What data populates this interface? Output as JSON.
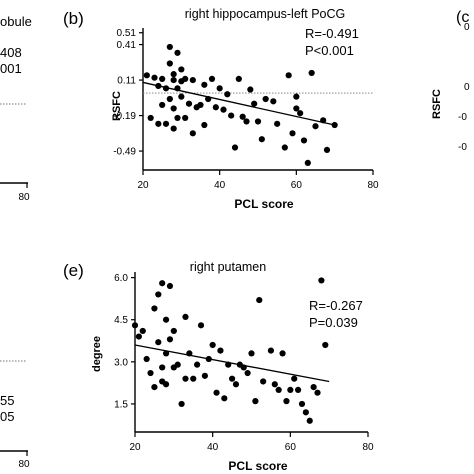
{
  "left_fragments": {
    "panel_a_title_fragment": "obule",
    "panel_a_stat1_fragment": "408",
    "panel_a_stat2_fragment": "001",
    "panel_a_x_tick_fragment": "80",
    "panel_d_stat1_fragment": "55",
    "panel_d_stat2_fragment": "05",
    "panel_d_x_tick_fragment": "80"
  },
  "right_fragments": {
    "panel_c_label_fragment": "(c",
    "panel_c_ylabel": "RSFC",
    "panel_c_tick_fragments": [
      "0",
      "0",
      "-0",
      "-0"
    ]
  },
  "chart_data": [
    {
      "type": "scatter",
      "panel_label": "(b)",
      "title": "right hippocampus-left PoCG",
      "xlabel": "PCL score",
      "ylabel": "RSFC",
      "xlim": [
        20,
        80
      ],
      "ylim": [
        -0.65,
        0.55
      ],
      "x_ticks": [
        "20",
        "40",
        "60",
        "80"
      ],
      "y_ticks": [
        "0.51",
        "0.41",
        "0.11",
        "-0.19",
        "-0.49"
      ],
      "y_tick_values": [
        0.51,
        0.41,
        0.11,
        -0.19,
        -0.49
      ],
      "reference_line": 0.0,
      "stats": [
        "R=-0.491",
        "P<0.001"
      ],
      "fit": {
        "x": [
          20,
          70
        ],
        "y": [
          0.09,
          -0.27
        ]
      },
      "x": [
        21,
        22,
        23,
        24,
        24,
        25,
        25,
        26,
        26,
        27,
        27,
        27,
        28,
        28,
        28,
        28,
        29,
        29,
        29,
        30,
        30,
        30,
        31,
        31,
        32,
        33,
        33,
        34,
        35,
        36,
        36,
        37,
        38,
        39,
        40,
        41,
        42,
        43,
        44,
        45,
        46,
        47,
        48,
        49,
        50,
        51,
        52,
        54,
        55,
        57,
        58,
        59,
        60,
        60,
        61,
        62,
        63,
        64,
        65,
        67,
        68,
        70
      ],
      "y": [
        0.15,
        -0.21,
        0.13,
        -0.26,
        0.06,
        0.12,
        -0.1,
        0.04,
        -0.26,
        0.25,
        -0.05,
        0.39,
        0.11,
        -0.13,
        0.16,
        -0.3,
        0.34,
        0.04,
        -0.21,
        0.2,
        -0.03,
        0.1,
        -0.21,
        0.12,
        -0.09,
        0.11,
        -0.34,
        -0.12,
        -0.1,
        0.07,
        -0.27,
        -0.05,
        0.12,
        -0.12,
        0.04,
        -0.14,
        -0.01,
        -0.19,
        -0.46,
        0.12,
        -0.2,
        -0.24,
        0.03,
        -0.09,
        -0.24,
        -0.39,
        -0.05,
        -0.07,
        -0.26,
        -0.46,
        0.15,
        -0.34,
        -0.03,
        -0.13,
        -0.17,
        -0.4,
        -0.59,
        0.17,
        -0.28,
        -0.23,
        -0.48,
        -0.27
      ]
    },
    {
      "type": "scatter",
      "panel_label": "(e)",
      "title": "right putamen",
      "xlabel": "PCL score",
      "ylabel": "degree",
      "xlim": [
        20,
        80
      ],
      "ylim": [
        0.5,
        6.2
      ],
      "x_ticks": [
        "20",
        "40",
        "60",
        "80"
      ],
      "y_ticks": [
        "6.0",
        "4.5",
        "3.0",
        "1.5"
      ],
      "y_tick_values": [
        6.0,
        4.5,
        3.0,
        1.5
      ],
      "stats": [
        "R=-0.267",
        "P=0.039"
      ],
      "fit": {
        "x": [
          20,
          70
        ],
        "y": [
          3.6,
          2.3
        ]
      },
      "x": [
        20,
        21,
        22,
        23,
        24,
        25,
        25,
        26,
        26,
        27,
        27,
        27,
        28,
        28,
        28,
        29,
        29,
        30,
        30,
        31,
        32,
        33,
        33,
        34,
        35,
        36,
        37,
        38,
        39,
        40,
        41,
        42,
        43,
        44,
        45,
        46,
        47,
        48,
        49,
        50,
        51,
        52,
        53,
        55,
        56,
        57,
        58,
        59,
        60,
        61,
        62,
        63,
        64,
        65,
        66,
        67,
        68,
        69
      ],
      "y": [
        4.3,
        3.9,
        4.1,
        3.1,
        2.6,
        2.1,
        4.9,
        3.7,
        5.4,
        2.3,
        5.8,
        2.8,
        3.3,
        4.5,
        2.2,
        3.8,
        5.7,
        2.8,
        4.1,
        2.9,
        1.5,
        4.6,
        2.4,
        3.3,
        2.4,
        2.9,
        4.3,
        2.5,
        3.1,
        3.6,
        1.9,
        3.4,
        1.7,
        2.9,
        2.4,
        2.2,
        2.9,
        2.8,
        2.6,
        3.3,
        1.6,
        5.2,
        2.3,
        3.4,
        2.2,
        2.0,
        3.3,
        1.6,
        2.0,
        2.4,
        2.0,
        1.5,
        1.2,
        0.9,
        2.1,
        1.9,
        5.9,
        3.6
      ]
    }
  ]
}
